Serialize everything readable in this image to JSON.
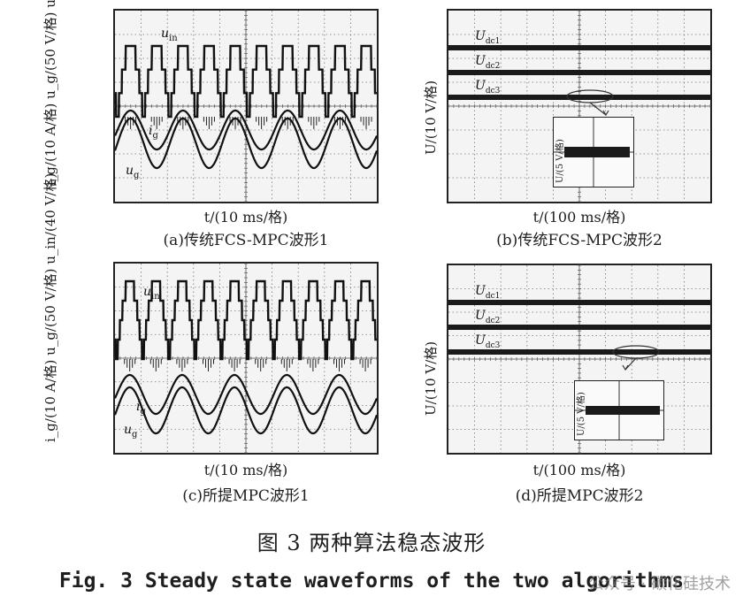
{
  "panels": {
    "a": {
      "ylabel": "i_g/(10 A/格)  u_g/(50 V/格)  u_in/(40 V/格)",
      "xlabel": "t/(10 ms/格)",
      "caption": "(a)传统FCS-MPC波形1",
      "series": [
        "u_in",
        "i_g",
        "u_g"
      ]
    },
    "b": {
      "ylabel": "U/(10 V/格)",
      "xlabel": "t/(100 ms/格)",
      "caption": "(b)传统FCS-MPC波形2",
      "series": [
        "U_dc1",
        "U_dc2",
        "U_dc3"
      ],
      "inset_ylabel": "U/(5 V/格)"
    },
    "c": {
      "ylabel": "i_g/(10 A/格)  u_g/(50 V/格)  u_in/(40 V/格)",
      "xlabel": "t/(10 ms/格)",
      "caption": "(c)所提MPC波形1",
      "series": [
        "u_in",
        "i_g",
        "u_g"
      ]
    },
    "d": {
      "ylabel": "U/(10 V/格)",
      "xlabel": "t/(100 ms/格)",
      "caption": "(d)所提MPC波形2",
      "series": [
        "U_dc1",
        "U_dc2",
        "U_dc3"
      ],
      "inset_ylabel": "U/(5 V/格)"
    }
  },
  "figure": {
    "title_cn": "图 3    两种算法稳态波形",
    "title_en": "Fig. 3 Steady state waveforms of the two algorithms"
  },
  "watermark": "公众号 · 碳化硅技术",
  "chart_data": [
    {
      "type": "line",
      "panel": "a",
      "grid": true,
      "x_divisions": 10,
      "y_divisions": 8,
      "series": [
        {
          "name": "u_in"
        },
        {
          "name": "i_g"
        },
        {
          "name": "u_g"
        }
      ]
    },
    {
      "type": "line",
      "panel": "b",
      "grid": true,
      "x_divisions": 10,
      "y_divisions": 8,
      "series": [
        {
          "name": "U_dc1"
        },
        {
          "name": "U_dc2"
        },
        {
          "name": "U_dc3"
        }
      ]
    },
    {
      "type": "line",
      "panel": "c",
      "grid": true,
      "x_divisions": 10,
      "y_divisions": 8,
      "series": [
        {
          "name": "u_in"
        },
        {
          "name": "i_g"
        },
        {
          "name": "u_g"
        }
      ]
    },
    {
      "type": "line",
      "panel": "d",
      "grid": true,
      "x_divisions": 10,
      "y_divisions": 8,
      "series": [
        {
          "name": "U_dc1"
        },
        {
          "name": "U_dc2"
        },
        {
          "name": "U_dc3"
        }
      ]
    }
  ]
}
